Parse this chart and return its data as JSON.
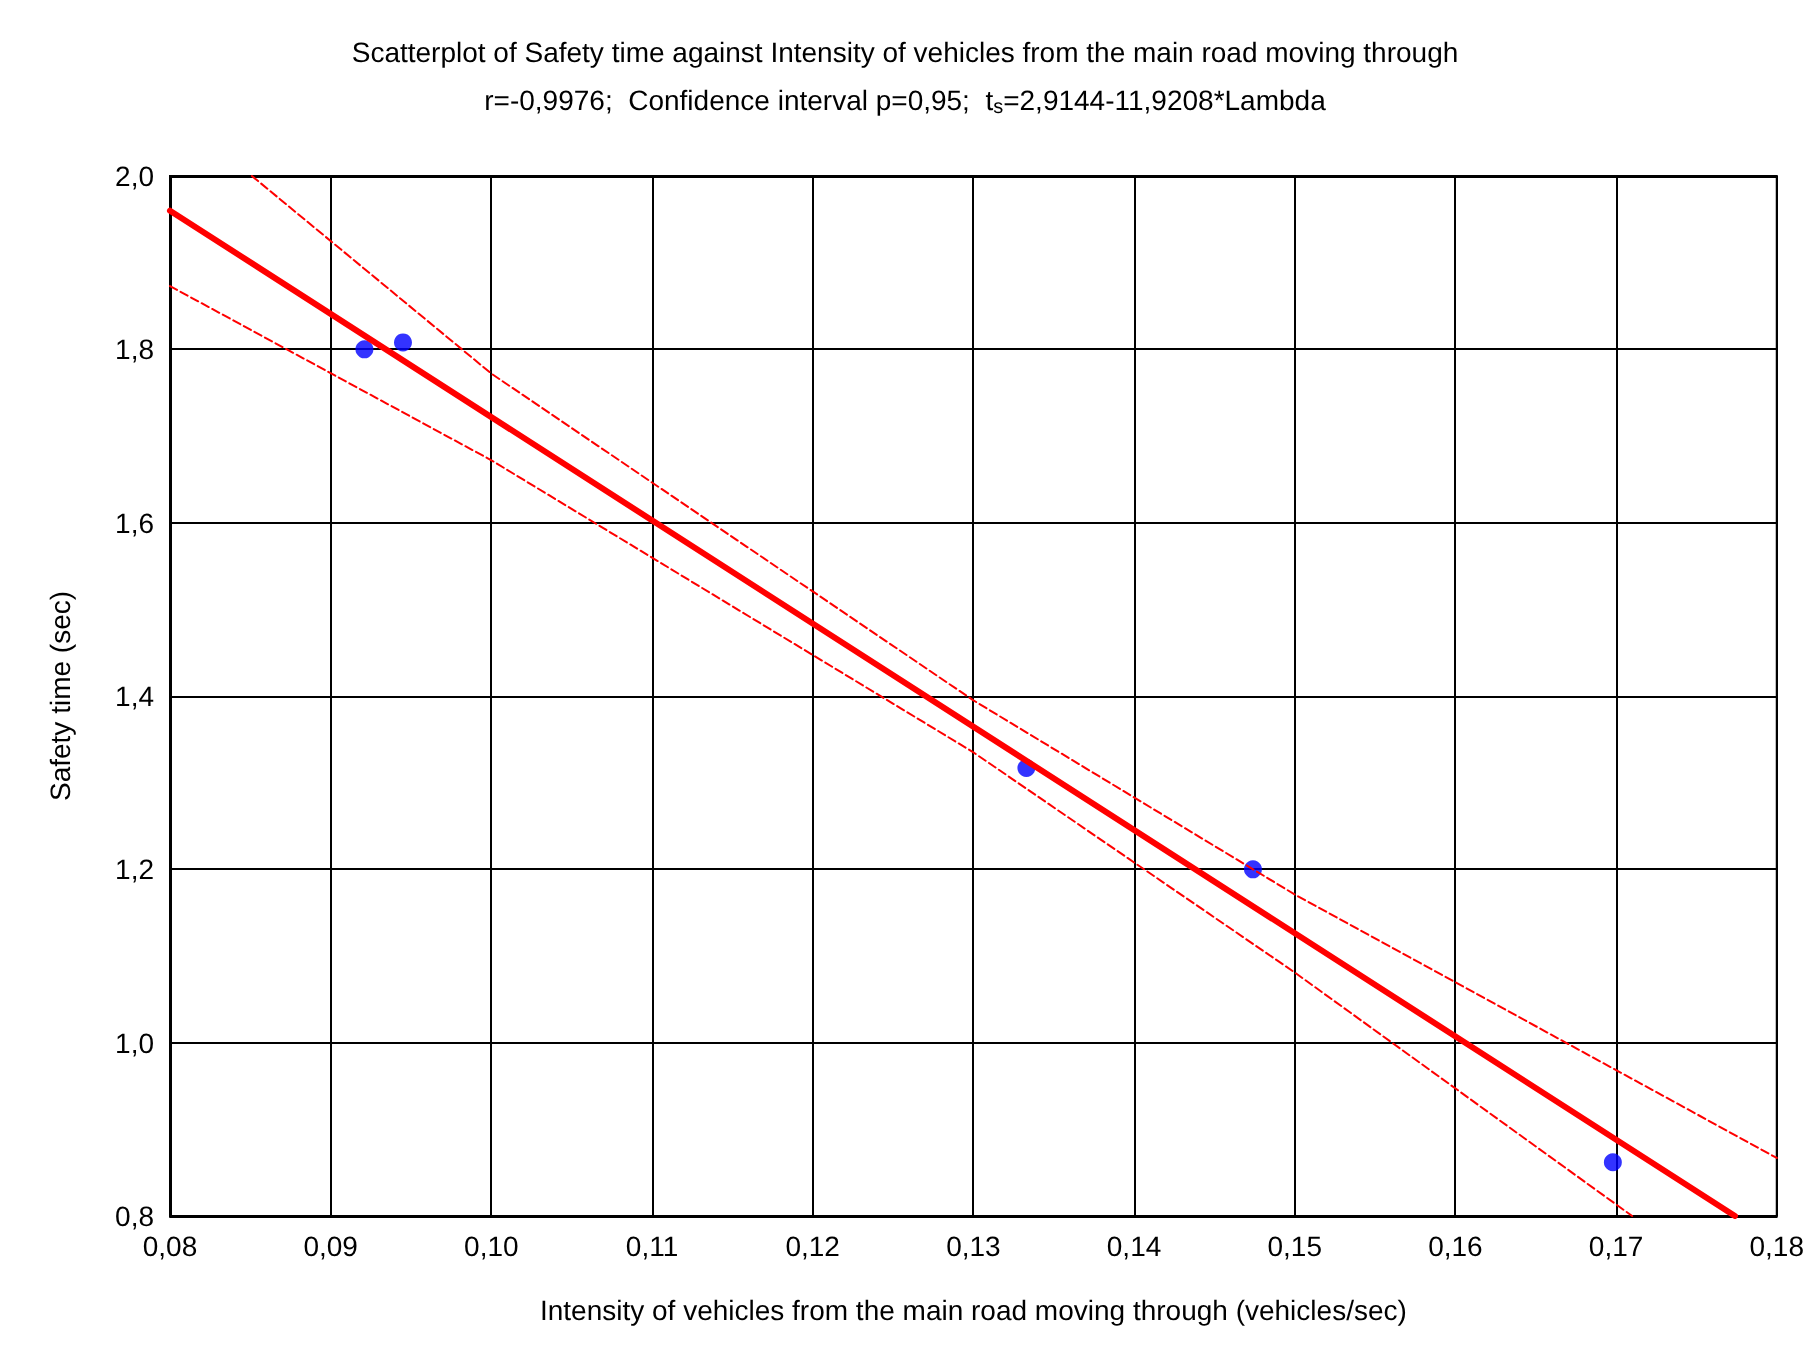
{
  "chart_data": {
    "type": "scatter",
    "title": "Scatterplot of Safety time against Intensity of vehicles from the main road moving through",
    "subtitle": "r=-0,9976;  Confidence interval p=0,95;  t$_{s}$=2,9144-11,9208*Lambda",
    "xlabel": "Intensity of vehicles from the main road moving through (vehicles/sec)",
    "ylabel": "Safety time (sec)",
    "x": [
      0.0921,
      0.0945,
      0.1333,
      0.1474,
      0.1698
    ],
    "series": [
      {
        "color": "#0000ff",
        "marker": "circle",
        "values": [
          1.8,
          1.808,
          1.317,
          1.2,
          0.862
        ]
      },
      {
        "type": "line",
        "color": "#ff0000",
        "line_style": "solid",
        "marker": "none",
        "x": [
          0.08,
          0.1774
        ],
        "values": [
          1.96,
          0.8
        ]
      },
      {
        "type": "line",
        "color": "#ff0000",
        "line_style": "dashed",
        "marker": "none",
        "x": [
          0.0851,
          0.1,
          0.13,
          0.15,
          0.18
        ],
        "values": [
          2.0,
          1.772,
          1.395,
          1.171,
          0.867
        ]
      },
      {
        "type": "line",
        "color": "#ff0000",
        "line_style": "dashed",
        "marker": "none",
        "x": [
          0.08,
          0.1,
          0.13,
          0.15,
          0.171
        ],
        "values": [
          1.873,
          1.672,
          1.335,
          1.081,
          0.8
        ]
      }
    ],
    "xlim": [
      0.08,
      0.18
    ],
    "xticks": [
      {
        "value": 0.08,
        "label": "0,08"
      },
      {
        "value": 0.09,
        "label": "0,09"
      },
      {
        "value": 0.1,
        "label": "0,10"
      },
      {
        "value": 0.11,
        "label": "0,11"
      },
      {
        "value": 0.12,
        "label": "0,12"
      },
      {
        "value": 0.13,
        "label": "0,13"
      },
      {
        "value": 0.14,
        "label": "0,14"
      },
      {
        "value": 0.15,
        "label": "0,15"
      },
      {
        "value": 0.16,
        "label": "0,16"
      },
      {
        "value": 0.17,
        "label": "0,17"
      },
      {
        "value": 0.18,
        "label": "0,18"
      }
    ],
    "ylim": [
      0.8,
      2.0
    ],
    "yticks": [
      {
        "value": 0.8,
        "label": "0,8"
      },
      {
        "value": 1.0,
        "label": "1,0"
      },
      {
        "value": 1.2,
        "label": "1,2"
      },
      {
        "value": 1.4,
        "label": "1,4"
      },
      {
        "value": 1.6,
        "label": "1,6"
      },
      {
        "value": 1.8,
        "label": "1,8"
      },
      {
        "value": 2.0,
        "label": "2,0"
      }
    ],
    "grid": true
  }
}
